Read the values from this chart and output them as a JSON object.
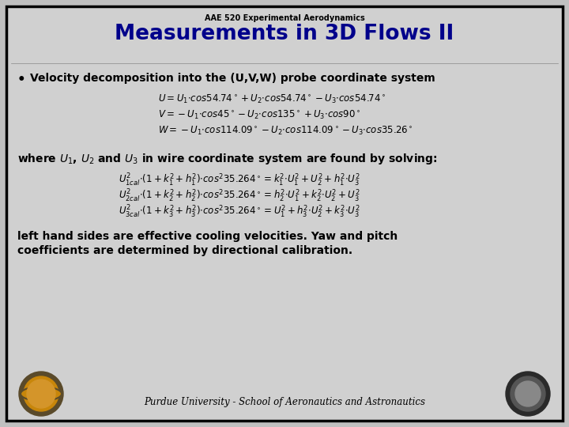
{
  "background_color": "#c0c0c0",
  "slide_bg": "#d0d0d0",
  "border_color": "#000000",
  "subtitle": "AAE 520 Experimental Aerodynamics",
  "title": "Measurements in 3D Flows II",
  "title_color": "#00008B",
  "subtitle_color": "#000000",
  "bullet_text": "Velocity decomposition into the (U,V,W) probe coordinate system",
  "where_text": "where ",
  "bottom_text1": "left hand sides are effective cooling velocities. Yaw and pitch",
  "bottom_text2": "coefficients are determined by directional calibration.",
  "footer": "Purdue University - School of Aeronautics and Astronautics",
  "text_color": "#000000"
}
